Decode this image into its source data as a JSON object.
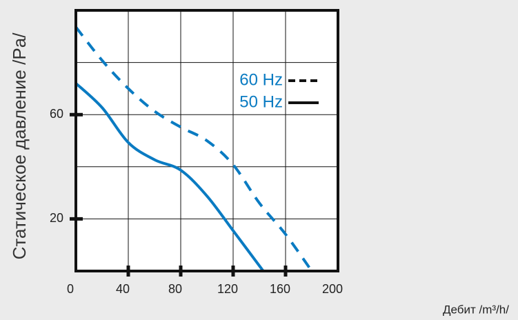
{
  "chart_data": {
    "type": "line",
    "x_label": "Дебит /m³/h/",
    "y_label": "Статическое давление /Pa/",
    "xlim": [
      0,
      200
    ],
    "xticks": [
      0,
      40,
      80,
      120,
      160,
      200
    ],
    "ylim": [
      0,
      100
    ],
    "yticks": [
      20,
      60
    ],
    "ygrid": [
      20,
      40,
      60,
      80
    ],
    "grid": true,
    "legend": "upper right",
    "series": [
      {
        "name": "60 Hz",
        "color": "#0a7bc2",
        "dash": true,
        "x": [
          0,
          20,
          40,
          60,
          80,
          100,
          120,
          140,
          160,
          180
        ],
        "values": [
          93.6,
          80.8,
          70,
          61.3,
          55.2,
          50,
          40.8,
          26.1,
          14.1,
          0
        ]
      },
      {
        "name": "50 Hz",
        "color": "#0a7bc2",
        "dash": false,
        "x": [
          0,
          20,
          40,
          60,
          80,
          100,
          120,
          143
        ],
        "values": [
          72,
          62.7,
          49.3,
          42.7,
          38.7,
          28.8,
          15.5,
          0
        ]
      }
    ]
  }
}
